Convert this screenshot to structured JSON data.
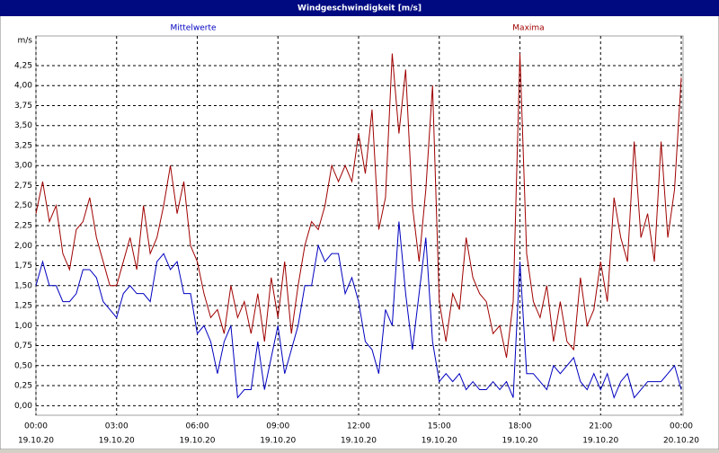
{
  "chart_data": {
    "type": "line",
    "title": "Windgeschwindigkeit [m/s]",
    "y_unit_label": "m/s",
    "x": [
      0,
      0.25,
      0.5,
      0.75,
      1,
      1.25,
      1.5,
      1.75,
      2,
      2.25,
      2.5,
      2.75,
      3,
      3.25,
      3.5,
      3.75,
      4,
      4.25,
      4.5,
      4.75,
      5,
      5.25,
      5.5,
      5.75,
      6,
      6.25,
      6.5,
      6.75,
      7,
      7.25,
      7.5,
      7.75,
      8,
      8.25,
      8.5,
      8.75,
      9,
      9.25,
      9.5,
      9.75,
      10,
      10.25,
      10.5,
      10.75,
      11,
      11.25,
      11.5,
      11.75,
      12,
      12.25,
      12.5,
      12.75,
      13,
      13.25,
      13.5,
      13.75,
      14,
      14.25,
      14.5,
      14.75,
      15,
      15.25,
      15.5,
      15.75,
      16,
      16.25,
      16.5,
      16.75,
      17,
      17.25,
      17.5,
      17.75,
      18,
      18.25,
      18.5,
      18.75,
      19,
      19.25,
      19.5,
      19.75,
      20,
      20.25,
      20.5,
      20.75,
      21,
      21.25,
      21.5,
      21.75,
      22,
      22.25,
      22.5,
      22.75,
      23,
      23.25,
      23.5,
      23.75,
      24
    ],
    "series": [
      {
        "name": "Mittelwerte",
        "color": "#0000c0",
        "values": [
          1.5,
          1.8,
          1.5,
          1.5,
          1.3,
          1.3,
          1.4,
          1.7,
          1.7,
          1.6,
          1.3,
          1.2,
          1.1,
          1.4,
          1.5,
          1.4,
          1.4,
          1.3,
          1.8,
          1.9,
          1.7,
          1.8,
          1.4,
          1.4,
          0.9,
          1.0,
          0.8,
          0.4,
          0.8,
          1.0,
          0.1,
          0.2,
          0.2,
          0.8,
          0.2,
          0.6,
          1.0,
          0.4,
          0.7,
          1.0,
          1.5,
          1.5,
          2.0,
          1.8,
          1.9,
          1.9,
          1.4,
          1.6,
          1.3,
          0.8,
          0.7,
          0.4,
          1.2,
          1.0,
          2.3,
          1.4,
          0.7,
          1.4,
          2.1,
          0.8,
          0.3,
          0.4,
          0.3,
          0.4,
          0.2,
          0.3,
          0.2,
          0.2,
          0.3,
          0.2,
          0.3,
          0.1,
          1.8,
          0.4,
          0.4,
          0.3,
          0.2,
          0.5,
          0.4,
          0.5,
          0.6,
          0.3,
          0.2,
          0.4,
          0.2,
          0.4,
          0.1,
          0.3,
          0.4,
          0.1,
          0.2,
          0.3,
          0.3,
          0.3,
          0.4,
          0.5,
          0.2
        ]
      },
      {
        "name": "Maxima",
        "color": "#a00000",
        "values": [
          2.4,
          2.8,
          2.3,
          2.5,
          1.9,
          1.7,
          2.2,
          2.3,
          2.6,
          2.1,
          1.8,
          1.5,
          1.5,
          1.8,
          2.1,
          1.7,
          2.5,
          1.9,
          2.1,
          2.5,
          3.0,
          2.4,
          2.8,
          2.0,
          1.8,
          1.4,
          1.1,
          1.2,
          0.9,
          1.5,
          1.1,
          1.3,
          0.9,
          1.4,
          0.8,
          1.6,
          1.1,
          1.8,
          0.9,
          1.5,
          2.0,
          2.3,
          2.2,
          2.5,
          3.0,
          2.8,
          3.0,
          2.8,
          3.4,
          2.9,
          3.7,
          2.2,
          2.6,
          4.4,
          3.4,
          4.2,
          2.5,
          1.8,
          2.7,
          4.0,
          1.3,
          0.8,
          1.4,
          1.2,
          2.1,
          1.6,
          1.4,
          1.3,
          0.9,
          1.0,
          0.6,
          1.3,
          4.4,
          1.9,
          1.3,
          1.1,
          1.5,
          0.8,
          1.3,
          0.8,
          0.7,
          1.6,
          1.0,
          1.2,
          1.8,
          1.3,
          2.6,
          2.1,
          1.8,
          3.3,
          2.1,
          2.4,
          1.8,
          3.3,
          2.1,
          2.7,
          4.1
        ]
      }
    ],
    "xlim": [
      0,
      24
    ],
    "xticks": [
      {
        "value": 0,
        "label": "00:00",
        "date": "19.10.20"
      },
      {
        "value": 3,
        "label": "03:00",
        "date": "19.10.20"
      },
      {
        "value": 6,
        "label": "06:00",
        "date": "19.10.20"
      },
      {
        "value": 9,
        "label": "09:00",
        "date": "19.10.20"
      },
      {
        "value": 12,
        "label": "12:00",
        "date": "19.10.20"
      },
      {
        "value": 15,
        "label": "15:00",
        "date": "19.10.20"
      },
      {
        "value": 18,
        "label": "18:00",
        "date": "19.10.20"
      },
      {
        "value": 21,
        "label": "21:00",
        "date": "19.10.20"
      },
      {
        "value": 24,
        "label": "00:00",
        "date": "20.10.20"
      }
    ],
    "ylim": [
      -0.12,
      4.62
    ],
    "yticks": [
      {
        "value": 0,
        "label": "0,00"
      },
      {
        "value": 0.25,
        "label": "0,25"
      },
      {
        "value": 0.5,
        "label": "0,50"
      },
      {
        "value": 0.75,
        "label": "0,75"
      },
      {
        "value": 1,
        "label": "1,00"
      },
      {
        "value": 1.25,
        "label": "1,25"
      },
      {
        "value": 1.5,
        "label": "1,50"
      },
      {
        "value": 1.75,
        "label": "1,75"
      },
      {
        "value": 2,
        "label": "2,00"
      },
      {
        "value": 2.25,
        "label": "2,25"
      },
      {
        "value": 2.5,
        "label": "2,50"
      },
      {
        "value": 2.75,
        "label": "2,75"
      },
      {
        "value": 3,
        "label": "3,00"
      },
      {
        "value": 3.25,
        "label": "3,25"
      },
      {
        "value": 3.5,
        "label": "3,50"
      },
      {
        "value": 3.75,
        "label": "3,75"
      },
      {
        "value": 4,
        "label": "4,00"
      },
      {
        "value": 4.25,
        "label": "4,25"
      }
    ],
    "grid": true
  }
}
